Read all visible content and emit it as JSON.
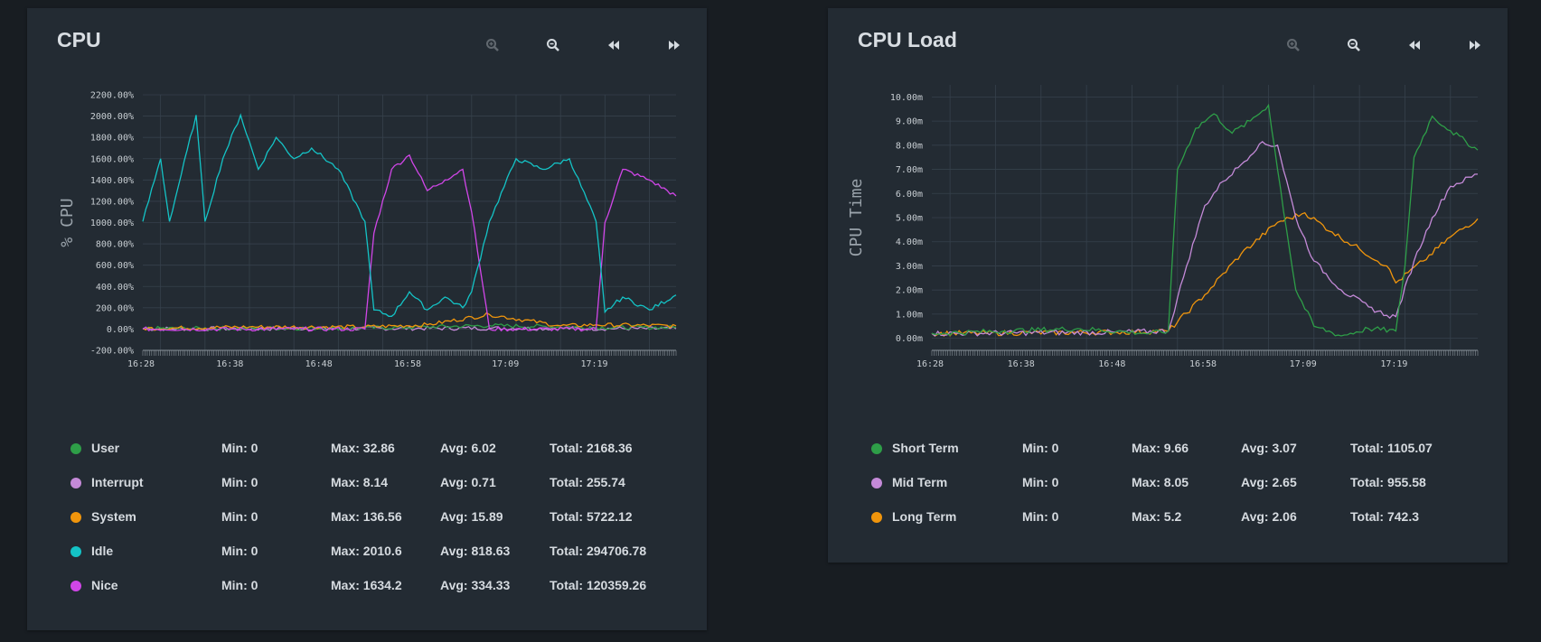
{
  "colors": {
    "background": "#181d22",
    "panel": "#232b33",
    "grid": "#36414c",
    "text": "#d6dbe0",
    "user": "#2e9e48",
    "interrupt": "#c48ad8",
    "system": "#f0950c",
    "idle": "#14c3c6",
    "nice": "#d146e8",
    "short_term": "#2e9e48",
    "mid_term": "#c48ad8",
    "long_term": "#f0950c"
  },
  "toolbar_icons": [
    "zoom-in-icon",
    "zoom-out-icon",
    "pan-left-icon",
    "pan-right-icon"
  ],
  "panels": {
    "cpu": {
      "title": "CPU",
      "legend": [
        {
          "name": "User",
          "min": "Min: 0",
          "max": "Max: 32.86",
          "avg": "Avg: 6.02",
          "total": "Total: 2168.36",
          "color": "#2e9e48"
        },
        {
          "name": "Interrupt",
          "min": "Min: 0",
          "max": "Max: 8.14",
          "avg": "Avg: 0.71",
          "total": "Total: 255.74",
          "color": "#c48ad8"
        },
        {
          "name": "System",
          "min": "Min: 0",
          "max": "Max: 136.56",
          "avg": "Avg: 15.89",
          "total": "Total: 5722.12",
          "color": "#f0950c"
        },
        {
          "name": "Idle",
          "min": "Min: 0",
          "max": "Max: 2010.6",
          "avg": "Avg: 818.63",
          "total": "Total: 294706.78",
          "color": "#14c3c6"
        },
        {
          "name": "Nice",
          "min": "Min: 0",
          "max": "Max: 1634.2",
          "avg": "Avg: 334.33",
          "total": "Total: 120359.26",
          "color": "#d146e8"
        }
      ]
    },
    "load": {
      "title": "CPU Load",
      "legend": [
        {
          "name": "Short Term",
          "min": "Min: 0",
          "max": "Max: 9.66",
          "avg": "Avg: 3.07",
          "total": "Total: 1105.07",
          "color": "#2e9e48"
        },
        {
          "name": "Mid Term",
          "min": "Min: 0",
          "max": "Max: 8.05",
          "avg": "Avg: 2.65",
          "total": "Total: 955.58",
          "color": "#c48ad8"
        },
        {
          "name": "Long Term",
          "min": "Min: 0",
          "max": "Max: 5.2",
          "avg": "Avg: 2.06",
          "total": "Total: 742.3",
          "color": "#f0950c"
        }
      ]
    }
  },
  "chart_data": [
    {
      "type": "line",
      "title": "CPU",
      "ylabel": "% CPU",
      "xlabel": "",
      "x_ticks": [
        "16:28",
        "16:38",
        "16:48",
        "16:58",
        "17:09",
        "17:19"
      ],
      "x_range": [
        "16:28",
        "17:28"
      ],
      "y_ticks": [
        "-200.00%",
        "0.00%",
        "200.00%",
        "400.00%",
        "600.00%",
        "800.00%",
        "1000.00%",
        "1200.00%",
        "1400.00%",
        "1600.00%",
        "1800.00%",
        "2000.00%",
        "2200.00%"
      ],
      "ylim": [
        -200,
        2200
      ],
      "grid": true,
      "series": [
        {
          "name": "Idle",
          "color": "#14c3c6",
          "x": [
            "16:28",
            "16:30",
            "16:31",
            "16:34",
            "16:35",
            "16:37",
            "16:39",
            "16:41",
            "16:43",
            "16:45",
            "16:47",
            "16:50",
            "16:53",
            "16:54",
            "16:56",
            "16:58",
            "17:00",
            "17:02",
            "17:04",
            "17:05",
            "17:07",
            "17:10",
            "17:13",
            "17:16",
            "17:19",
            "17:20",
            "17:22",
            "17:25",
            "17:28"
          ],
          "y": [
            1010,
            1600,
            1010,
            2010,
            1010,
            1600,
            2010,
            1500,
            1800,
            1600,
            1700,
            1500,
            1010,
            180,
            120,
            350,
            180,
            300,
            200,
            350,
            1010,
            1600,
            1500,
            1600,
            1010,
            160,
            300,
            180,
            320
          ]
        },
        {
          "name": "Nice",
          "color": "#d146e8",
          "x": [
            "16:28",
            "16:53",
            "16:54",
            "16:56",
            "16:58",
            "17:00",
            "17:02",
            "17:04",
            "17:05",
            "17:07",
            "17:19",
            "17:20",
            "17:22",
            "17:25",
            "17:28"
          ],
          "y": [
            0,
            0,
            900,
            1500,
            1634.2,
            1300,
            1400,
            1500,
            1100,
            0,
            0,
            1000,
            1500,
            1400,
            1250
          ]
        },
        {
          "name": "System",
          "color": "#f0950c",
          "x": [
            "16:28",
            "16:40",
            "16:53",
            "17:00",
            "17:07",
            "17:15",
            "17:19",
            "17:28"
          ],
          "y": [
            5,
            20,
            20,
            40,
            136.56,
            30,
            40,
            30
          ]
        },
        {
          "name": "User",
          "color": "#2e9e48",
          "x": [
            "16:28",
            "16:53",
            "17:00",
            "17:07",
            "17:19",
            "17:28"
          ],
          "y": [
            5,
            10,
            20,
            32.86,
            15,
            15
          ]
        },
        {
          "name": "Interrupt",
          "color": "#c48ad8",
          "x": [
            "16:28",
            "17:07",
            "17:28"
          ],
          "y": [
            2,
            8.14,
            3
          ]
        }
      ]
    },
    {
      "type": "line",
      "title": "CPU Load",
      "ylabel": "CPU Time",
      "xlabel": "",
      "x_ticks": [
        "16:28",
        "16:38",
        "16:48",
        "16:58",
        "17:09",
        "17:19"
      ],
      "x_range": [
        "16:28",
        "17:28"
      ],
      "y_ticks": [
        "0.00m",
        "1.00m",
        "2.00m",
        "3.00m",
        "4.00m",
        "5.00m",
        "6.00m",
        "7.00m",
        "8.00m",
        "9.00m",
        "10.00m"
      ],
      "ylim": [
        -0.5,
        10.5
      ],
      "grid": true,
      "series": [
        {
          "name": "Short Term",
          "color": "#2e9e48",
          "x": [
            "16:28",
            "16:36",
            "16:44",
            "16:52",
            "16:54",
            "16:55",
            "16:57",
            "16:59",
            "17:01",
            "17:03",
            "17:05",
            "17:06",
            "17:08",
            "17:10",
            "17:13",
            "17:16",
            "17:19",
            "17:20",
            "17:21",
            "17:23",
            "17:25",
            "17:28"
          ],
          "y": [
            0.2,
            0.3,
            0.4,
            0.2,
            0.3,
            7.0,
            8.7,
            9.3,
            8.5,
            9.0,
            9.66,
            7.0,
            2.0,
            0.5,
            0.1,
            0.4,
            0.3,
            3.0,
            7.5,
            9.2,
            8.6,
            7.8
          ]
        },
        {
          "name": "Mid Term",
          "color": "#c48ad8",
          "x": [
            "16:28",
            "16:48",
            "16:54",
            "16:56",
            "16:58",
            "17:00",
            "17:02",
            "17:04",
            "17:06",
            "17:08",
            "17:10",
            "17:13",
            "17:16",
            "17:18",
            "17:19",
            "17:21",
            "17:23",
            "17:25",
            "17:28"
          ],
          "y": [
            0.2,
            0.25,
            0.3,
            3.0,
            5.5,
            6.5,
            7.2,
            8.05,
            8.0,
            5.0,
            3.2,
            2.0,
            1.3,
            0.95,
            0.9,
            3.2,
            5.0,
            6.3,
            6.8
          ]
        },
        {
          "name": "Long Term",
          "color": "#f0950c",
          "x": [
            "16:28",
            "16:48",
            "16:54",
            "16:58",
            "17:02",
            "17:06",
            "17:09",
            "17:12",
            "17:15",
            "17:18",
            "17:19",
            "17:22",
            "17:25",
            "17:28"
          ],
          "y": [
            0.2,
            0.25,
            0.3,
            1.8,
            3.5,
            4.8,
            5.2,
            4.4,
            3.7,
            3.0,
            2.3,
            3.2,
            4.2,
            4.95
          ]
        }
      ]
    }
  ]
}
